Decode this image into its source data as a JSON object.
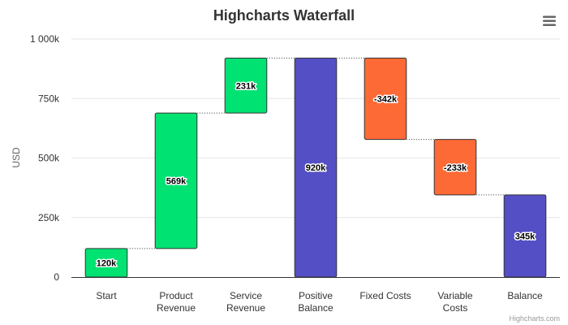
{
  "chart_data": {
    "type": "waterfall",
    "title": "Highcharts Waterfall",
    "ylabel": "USD",
    "ylim": [
      0,
      1000000
    ],
    "yticks": [
      0,
      250000,
      500000,
      750000,
      1000000
    ],
    "ytick_labels": [
      "0",
      "250k",
      "500k",
      "750k",
      "1 000k"
    ],
    "categories": [
      [
        "Start"
      ],
      [
        "Product",
        "Revenue"
      ],
      [
        "Service",
        "Revenue"
      ],
      [
        "Positive",
        "Balance"
      ],
      [
        "Fixed Costs"
      ],
      [
        "Variable",
        "Costs"
      ],
      [
        "Balance"
      ]
    ],
    "values": [
      120000,
      569000,
      231000,
      920000,
      -342000,
      -233000,
      345000
    ],
    "kinds": [
      "delta",
      "delta",
      "delta",
      "sum",
      "delta",
      "delta",
      "sum"
    ],
    "data_labels": [
      "120k",
      "569k",
      "231k",
      "920k",
      "-342k",
      "-233k",
      "345k"
    ],
    "grid": true,
    "colors": {
      "up": "#00e272",
      "down": "#fe6a35",
      "sum": "#544fc5",
      "grid": "#e6e6e6",
      "connector": "#333333"
    }
  },
  "credits": "Highcharts.com",
  "menu_icon": "hamburger-menu-icon"
}
